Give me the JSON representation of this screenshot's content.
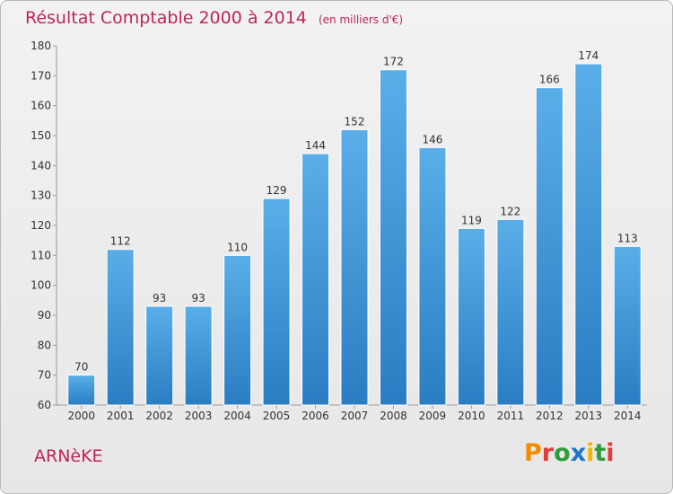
{
  "header": {
    "title": "Résultat Comptable 2000 à 2014",
    "unit": "(en milliers d'€)"
  },
  "footer": {
    "commune": "ARNèKE",
    "logo_text": "Proxiti"
  },
  "colors": {
    "bar": "#3d95d9",
    "title": "#c0245a",
    "logo_letters": [
      "#f28c00",
      "#e23b3b",
      "#2e9e3a",
      "#1e77c9",
      "#f2b500",
      "#2e9e3a",
      "#e23b3b"
    ]
  },
  "chart_data": {
    "type": "bar",
    "title": "Résultat Comptable 2000 à 2014",
    "categories": [
      "2000",
      "2001",
      "2002",
      "2003",
      "2004",
      "2005",
      "2006",
      "2007",
      "2008",
      "2009",
      "2010",
      "2011",
      "2012",
      "2013",
      "2014"
    ],
    "values": [
      70,
      112,
      93,
      93,
      110,
      129,
      144,
      152,
      172,
      146,
      119,
      122,
      166,
      174,
      113
    ],
    "ylim": [
      60,
      180
    ],
    "yticks": [
      60,
      70,
      80,
      90,
      100,
      110,
      120,
      130,
      140,
      150,
      160,
      170,
      180
    ],
    "grid": false,
    "legend": "none"
  }
}
